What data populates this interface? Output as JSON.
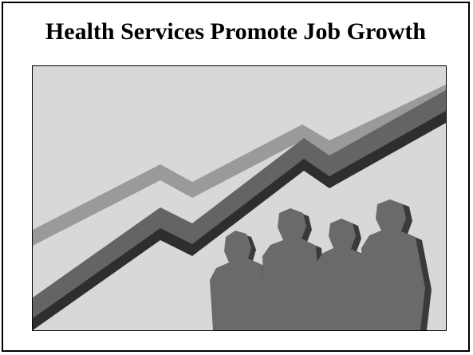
{
  "slide": {
    "title": "Health Services Promote Job Growth"
  },
  "clipart": {
    "subject": "rising-trend-lines-with-people-silhouettes",
    "colors": {
      "background": "#d8d8d8",
      "light_band": "#9a9a9a",
      "dark_band_shadow": "#2e2e2e",
      "dark_band": "#646464",
      "people_shadow": "#3a3a3a",
      "people": "#6a6a6a"
    }
  }
}
